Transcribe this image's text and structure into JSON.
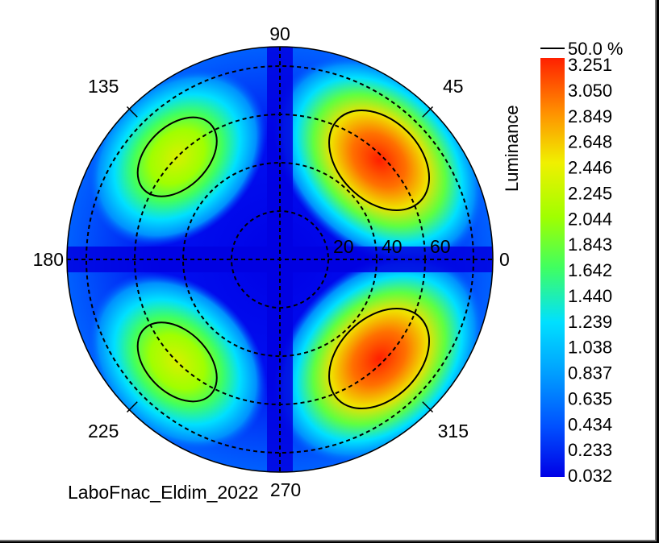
{
  "chart_data": {
    "type": "heatmap",
    "projection": "polar",
    "quantity": "Luminance",
    "colorbar": {
      "title": "Luminance",
      "ticks": [
        "3.251",
        "3.050",
        "2.849",
        "2.648",
        "2.446",
        "2.245",
        "2.044",
        "1.843",
        "1.642",
        "1.440",
        "1.239",
        "1.038",
        "0.837",
        "0.635",
        "0.434",
        "0.233",
        "0.032"
      ],
      "min": 0.032,
      "max": 3.251,
      "colors": [
        "#0000e6",
        "#0050ff",
        "#00a0ff",
        "#00e0ff",
        "#40ff60",
        "#a0ff00",
        "#f0f000",
        "#ff9000",
        "#ff2000"
      ]
    },
    "contour_label": "50.0 %",
    "azimuth_labels": [
      "90",
      "45",
      "0",
      "315",
      "270",
      "225",
      "180",
      "135"
    ],
    "radial_labels": [
      "20",
      "40",
      "60"
    ],
    "radial_rings": [
      20,
      40,
      60,
      80
    ],
    "hotspots": [
      {
        "azimuth": 45,
        "polar": 58,
        "peak": 3.251
      },
      {
        "azimuth": 315,
        "polar": 58,
        "peak": 3.15
      },
      {
        "azimuth": 135,
        "polar": 60,
        "peak": 2.35
      },
      {
        "azimuth": 225,
        "polar": 60,
        "peak": 2.3
      }
    ],
    "footer": "LaboFnac_Eldim_2022"
  }
}
